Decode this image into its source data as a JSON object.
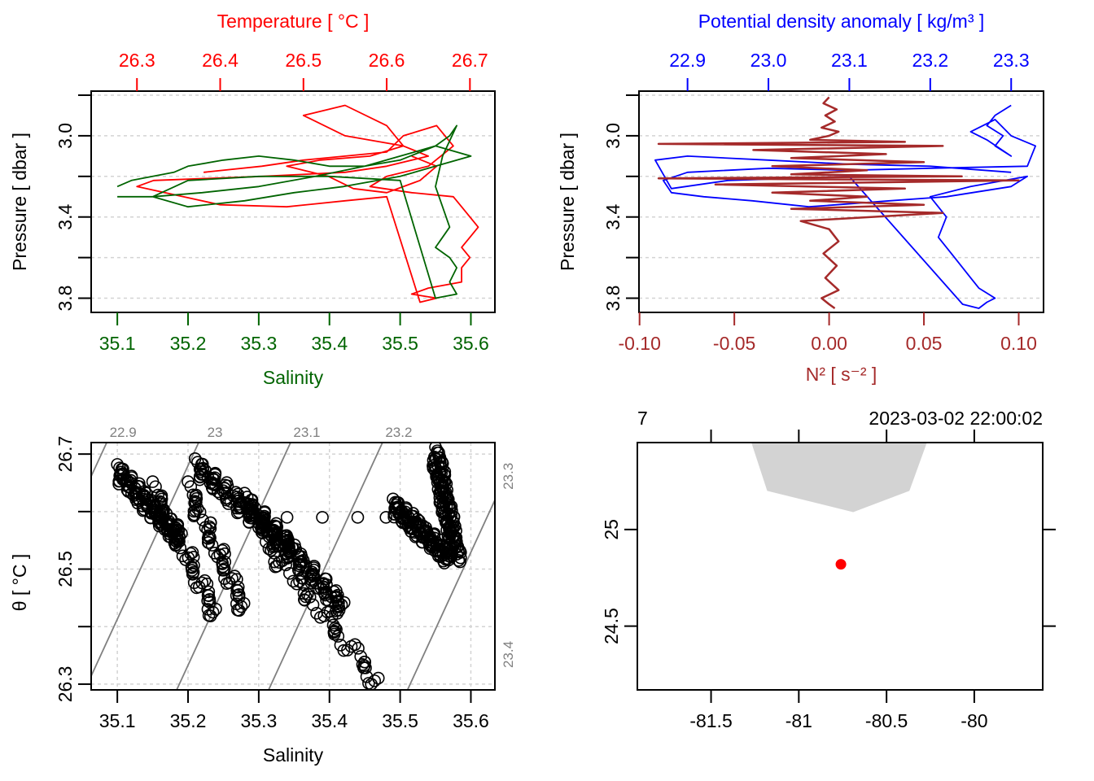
{
  "chart_data": [
    {
      "id": "ts-profile",
      "type": "line",
      "top_axis": {
        "label": "Temperature [ °C ]",
        "color": "#ff0000",
        "ticks": [
          "26.3",
          "26.4",
          "26.5",
          "26.6",
          "26.7"
        ],
        "range": [
          26.245,
          26.73
        ]
      },
      "bottom_axis": {
        "label": "Salinity",
        "color": "#006400",
        "ticks": [
          "35.1",
          "35.2",
          "35.3",
          "35.4",
          "35.5",
          "35.6"
        ],
        "range": [
          35.063,
          35.634
        ]
      },
      "left_axis": {
        "label": "Pressure [ dbar ]",
        "ticks": [
          "3.0",
          "3.4",
          "3.8"
        ],
        "minor_ticks": [
          2.8,
          3.2,
          3.6
        ],
        "range": [
          2.78,
          3.87
        ],
        "reversed": true
      },
      "grid": true,
      "series": [
        {
          "name": "Temperature",
          "color": "#ff0000",
          "x": [
            26.38,
            26.45,
            26.5,
            26.55,
            26.6,
            26.62,
            26.66,
            26.68,
            26.65,
            26.6,
            26.58,
            26.63,
            26.68,
            26.69,
            26.7,
            26.71,
            26.7,
            26.69,
            26.7,
            26.69,
            26.69,
            26.65,
            26.63,
            26.66,
            26.64,
            26.6,
            26.55,
            26.48,
            26.4,
            26.3,
            26.32,
            26.45,
            26.55,
            26.6,
            26.65,
            26.62,
            26.55,
            26.5,
            26.55,
            26.6,
            26.62,
            26.58,
            26.52,
            26.48,
            26.53,
            26.56,
            26.6,
            26.64,
            26.66,
            26.63
          ],
          "y": [
            3.18,
            3.15,
            3.12,
            3.1,
            3.08,
            3.0,
            2.95,
            3.05,
            3.15,
            3.2,
            3.25,
            3.28,
            3.3,
            3.35,
            3.4,
            3.45,
            3.5,
            3.55,
            3.6,
            3.65,
            3.72,
            3.75,
            3.78,
            3.8,
            3.82,
            3.3,
            3.32,
            3.35,
            3.34,
            3.25,
            3.22,
            3.2,
            3.18,
            3.15,
            3.1,
            3.05,
            3.0,
            2.9,
            2.85,
            2.95,
            3.05,
            3.1,
            3.12,
            3.15,
            3.2,
            3.26,
            3.28,
            3.22,
            3.15,
            3.1
          ]
        },
        {
          "name": "Salinity",
          "color": "#006400",
          "x": [
            35.1,
            35.12,
            35.15,
            35.18,
            35.2,
            35.25,
            35.3,
            35.35,
            35.4,
            35.45,
            35.5,
            35.55,
            35.57,
            35.58,
            35.56,
            35.55,
            35.56,
            35.57,
            35.56,
            35.55,
            35.57,
            35.58,
            35.57,
            35.58,
            35.55,
            35.5,
            35.4,
            35.3,
            35.2,
            35.15,
            35.2,
            35.28,
            35.35,
            35.42,
            35.5,
            35.55,
            35.6,
            35.55,
            35.5,
            35.45,
            35.38,
            35.3,
            35.22,
            35.15,
            35.1
          ],
          "y": [
            3.25,
            3.22,
            3.2,
            3.18,
            3.15,
            3.12,
            3.1,
            3.12,
            3.15,
            3.15,
            3.12,
            3.05,
            3.0,
            2.95,
            3.1,
            3.25,
            3.35,
            3.45,
            3.5,
            3.55,
            3.6,
            3.65,
            3.72,
            3.78,
            3.8,
            3.22,
            3.2,
            3.2,
            3.22,
            3.3,
            3.35,
            3.32,
            3.28,
            3.25,
            3.2,
            3.15,
            3.1,
            3.05,
            3.1,
            3.15,
            3.2,
            3.25,
            3.28,
            3.3,
            3.3
          ]
        }
      ]
    },
    {
      "id": "density-n2-profile",
      "type": "line",
      "top_axis": {
        "label": "Potential density anomaly [ kg/m³ ]",
        "color": "#0000ff",
        "ticks": [
          "22.9",
          "23.0",
          "23.1",
          "23.2",
          "23.3"
        ],
        "range": [
          22.84,
          23.34
        ]
      },
      "bottom_axis": {
        "label": "N² [ s⁻² ]",
        "color": "#a52a2a",
        "ticks": [
          "-0.10",
          "-0.05",
          "0.00",
          "0.05",
          "0.10"
        ],
        "range": [
          -0.1003,
          0.1131
        ]
      },
      "left_axis": {
        "label": "Pressure [ dbar ]",
        "ticks": [
          "3.0",
          "3.4",
          "3.8"
        ],
        "minor_ticks": [
          2.8,
          3.2,
          3.6
        ],
        "range": [
          2.78,
          3.87
        ],
        "reversed": true
      },
      "grid": true,
      "series": [
        {
          "name": "Potential density anomaly",
          "color": "#0000ff",
          "x": [
            23.3,
            23.28,
            23.27,
            23.29,
            23.28,
            23.3,
            23.27,
            23.25,
            23.28,
            23.3,
            23.33,
            23.32,
            23.2,
            23.1,
            23.0,
            22.9,
            22.87,
            22.88,
            22.92,
            22.98,
            23.05,
            23.15,
            23.22,
            23.3,
            23.32,
            23.25,
            23.2,
            23.22,
            23.21,
            23.22,
            23.23,
            23.24,
            23.25,
            23.26,
            23.28,
            23.27,
            23.26,
            23.24,
            23.1,
            22.95,
            22.88,
            22.86,
            22.9,
            23.0,
            23.1,
            23.2,
            23.3
          ],
          "y": [
            2.85,
            2.9,
            2.95,
            3.0,
            3.05,
            3.1,
            3.02,
            2.98,
            2.92,
            3.0,
            3.05,
            3.15,
            3.16,
            3.17,
            3.16,
            3.18,
            3.22,
            3.28,
            3.3,
            3.32,
            3.35,
            3.32,
            3.3,
            3.25,
            3.2,
            3.25,
            3.3,
            3.4,
            3.5,
            3.55,
            3.6,
            3.65,
            3.7,
            3.75,
            3.8,
            3.82,
            3.85,
            3.83,
            3.2,
            3.22,
            3.26,
            3.12,
            3.1,
            3.12,
            3.14,
            3.15,
            3.18
          ]
        },
        {
          "name": "N²",
          "color": "#a52a2a",
          "x": [
            0.0,
            -0.003,
            0.004,
            -0.002,
            0.003,
            -0.004,
            0.005,
            0.0,
            -0.01,
            0.04,
            -0.09,
            0.06,
            -0.04,
            0.03,
            -0.02,
            0.05,
            -0.03,
            0.02,
            -0.02,
            0.07,
            -0.09,
            0.1,
            -0.06,
            0.04,
            -0.03,
            0.02,
            -0.01,
            0.05,
            -0.02,
            0.06,
            -0.015,
            0.0,
            0.005,
            -0.003,
            0.004,
            -0.002,
            0.005,
            -0.004,
            0.0,
            0.003
          ],
          "y": [
            2.81,
            2.84,
            2.87,
            2.9,
            2.93,
            2.96,
            2.98,
            3.0,
            3.02,
            3.03,
            3.04,
            3.05,
            3.07,
            3.09,
            3.11,
            3.13,
            3.15,
            3.17,
            3.19,
            3.2,
            3.21,
            3.22,
            3.24,
            3.26,
            3.28,
            3.3,
            3.32,
            3.34,
            3.36,
            3.38,
            3.42,
            3.46,
            3.52,
            3.58,
            3.64,
            3.7,
            3.76,
            3.8,
            3.83,
            3.85
          ]
        }
      ]
    },
    {
      "id": "theta-s-diagram",
      "type": "scatter",
      "xlabel": "Salinity",
      "ylabel": "θ [ °C ]",
      "xticks": [
        "35.1",
        "35.2",
        "35.3",
        "35.4",
        "35.5",
        "35.6"
      ],
      "xlim": [
        35.063,
        35.634
      ],
      "yticks": [
        "26.3",
        "26.5",
        "26.7"
      ],
      "minor_yticks": [
        26.4,
        26.6
      ],
      "ylim": [
        26.29,
        26.72
      ],
      "grid": true,
      "isopycnals": {
        "labels": [
          "22.9",
          "23",
          "23.1",
          "23.2",
          "23.3",
          "23.4"
        ],
        "top_s": [
          35.085,
          35.215,
          35.345,
          35.475
        ],
        "right_theta": [
          26.67,
          26.36
        ],
        "slope_dtheta_ds": 2.67,
        "color": "#808080"
      },
      "clusters": [
        {
          "s0": 35.1,
          "t0": 26.67,
          "s1": 35.19,
          "t1": 26.55,
          "n": 120
        },
        {
          "s0": 35.15,
          "t0": 26.64,
          "s1": 35.24,
          "t1": 26.42,
          "n": 60
        },
        {
          "s0": 35.2,
          "t0": 26.64,
          "s1": 35.28,
          "t1": 26.43,
          "n": 60
        },
        {
          "s0": 35.21,
          "t0": 26.68,
          "s1": 35.35,
          "t1": 26.53,
          "n": 120
        },
        {
          "s0": 35.28,
          "t0": 26.62,
          "s1": 35.42,
          "t1": 26.43,
          "n": 120
        },
        {
          "s0": 35.3,
          "t0": 26.56,
          "s1": 35.47,
          "t1": 26.3,
          "n": 60
        },
        {
          "s0": 35.55,
          "t0": 26.7,
          "s1": 35.58,
          "t1": 26.52,
          "n": 140
        },
        {
          "s0": 35.49,
          "t0": 26.61,
          "s1": 35.57,
          "t1": 26.52,
          "n": 120
        }
      ],
      "isolated_points": [
        [
          35.34,
          26.59
        ],
        [
          35.39,
          26.59
        ],
        [
          35.44,
          26.59
        ],
        [
          35.48,
          26.59
        ]
      ]
    },
    {
      "id": "location-map",
      "type": "map",
      "xticks": [
        "-81.5",
        "-81",
        "-80.5",
        "-80"
      ],
      "xlim": [
        -81.92,
        -79.61
      ],
      "yticks": [
        "25",
        "24.5"
      ],
      "ylim": [
        24.17,
        25.45
      ],
      "top_labels": {
        "left": "7",
        "right": "2023-03-02 22:00:02"
      },
      "top_ticks": [
        -81.5,
        -81.0,
        -80.5,
        -80.0
      ],
      "land_polygon": [
        [
          -81.27,
          25.45
        ],
        [
          -81.18,
          25.2
        ],
        [
          -80.69,
          25.09
        ],
        [
          -80.37,
          25.2
        ],
        [
          -80.27,
          25.45
        ]
      ],
      "land_color": "#d3d3d3",
      "station": {
        "lon": -80.76,
        "lat": 24.82,
        "color": "#ff0000"
      }
    }
  ]
}
